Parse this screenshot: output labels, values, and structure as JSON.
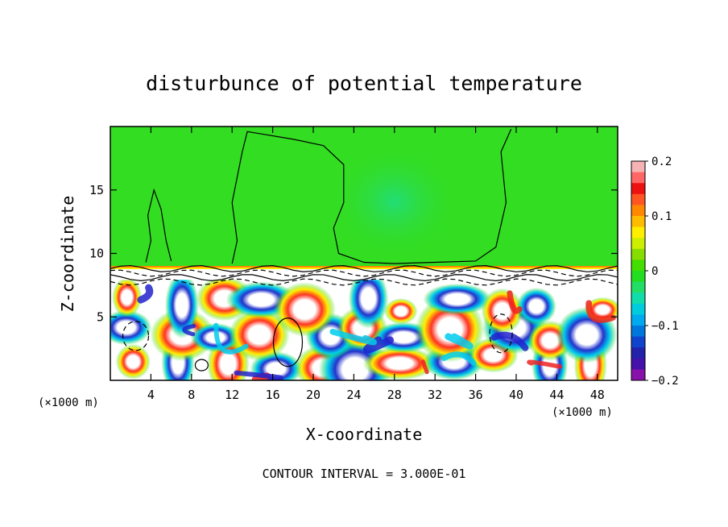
{
  "chart_data": {
    "type": "heatmap",
    "title": "disturbunce of potential temperature",
    "xlabel": "X-coordinate",
    "ylabel": "Z-coordinate",
    "x_unit": "(×1000 m)",
    "x_unit_right": "(×1000 m)",
    "xlim": [
      0,
      50
    ],
    "ylim": [
      0,
      20
    ],
    "x_ticks": [
      4,
      8,
      12,
      16,
      20,
      24,
      28,
      32,
      36,
      40,
      44,
      48
    ],
    "y_ticks": [
      5,
      10,
      15
    ],
    "colorbar": {
      "min": -0.2,
      "max": 0.2,
      "ticks": [
        "0.2",
        "0.1",
        "0",
        "−0.1",
        "−0.2"
      ],
      "tick_values": [
        0.2,
        0.1,
        0,
        -0.1,
        -0.2
      ]
    },
    "regions": [
      {
        "name": "upper layer (z ≈ 9–20 km)",
        "value": 0.02
      },
      {
        "name": "central cool patch (x ≈ 24–34 km, z ≈ 10–19 km)",
        "value": -0.03
      },
      {
        "name": "inversion strip (z ≈ 9 km)",
        "value": 0.15
      },
      {
        "name": "lower turbulent layer (z ≈ 0–8 km)",
        "value_range": [
          -0.2,
          0.2
        ]
      }
    ],
    "footer": "CONTOUR INTERVAL = 3.000E-01",
    "colors": {
      "upper": "#33dd22",
      "upper_cool": "#22dd66",
      "strip_orange": "#ff8800",
      "strip_yellow": "#ffee00",
      "cold": "#2222cc",
      "warm": "#ee2222"
    }
  }
}
